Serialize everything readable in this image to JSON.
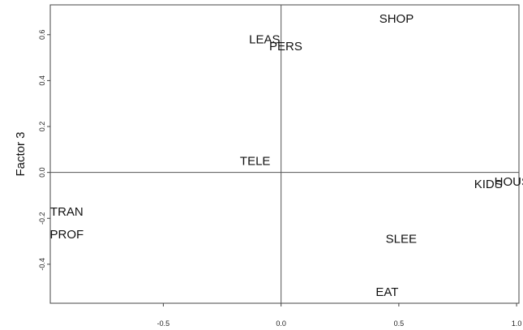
{
  "chart_data": {
    "type": "scatter",
    "title": "",
    "xlabel": "",
    "ylabel": "Factor 3",
    "xlim": [
      -0.98,
      1.01
    ],
    "ylim": [
      -0.57,
      0.73
    ],
    "x_ticks": [
      -0.5,
      0.0,
      0.5,
      1.0
    ],
    "x_tick_labels": [
      "-0.5",
      "0.0",
      "0.5",
      "1.0"
    ],
    "y_ticks": [
      -0.4,
      -0.2,
      0.0,
      0.2,
      0.4,
      0.6
    ],
    "y_tick_labels": [
      "-0.4",
      "-0.2",
      "0.0",
      "0.2",
      "0.4",
      "0.6"
    ],
    "reference_lines": {
      "x": 0.0,
      "y": 0.0
    },
    "grid": false,
    "points": [
      {
        "label": "SHOP",
        "x": 0.49,
        "y": 0.67
      },
      {
        "label": "LEAS",
        "x": -0.07,
        "y": 0.58
      },
      {
        "label": "PERS",
        "x": 0.02,
        "y": 0.55
      },
      {
        "label": "TELE",
        "x": -0.11,
        "y": 0.05
      },
      {
        "label": "KIDS",
        "x": 0.88,
        "y": -0.05
      },
      {
        "label": "HOUS",
        "x": 0.98,
        "y": -0.04
      },
      {
        "label": "TRAN",
        "x": -0.91,
        "y": -0.17
      },
      {
        "label": "PROF",
        "x": -0.91,
        "y": -0.27
      },
      {
        "label": "SLEE",
        "x": 0.51,
        "y": -0.29
      },
      {
        "label": "EAT",
        "x": 0.45,
        "y": -0.52
      }
    ]
  }
}
